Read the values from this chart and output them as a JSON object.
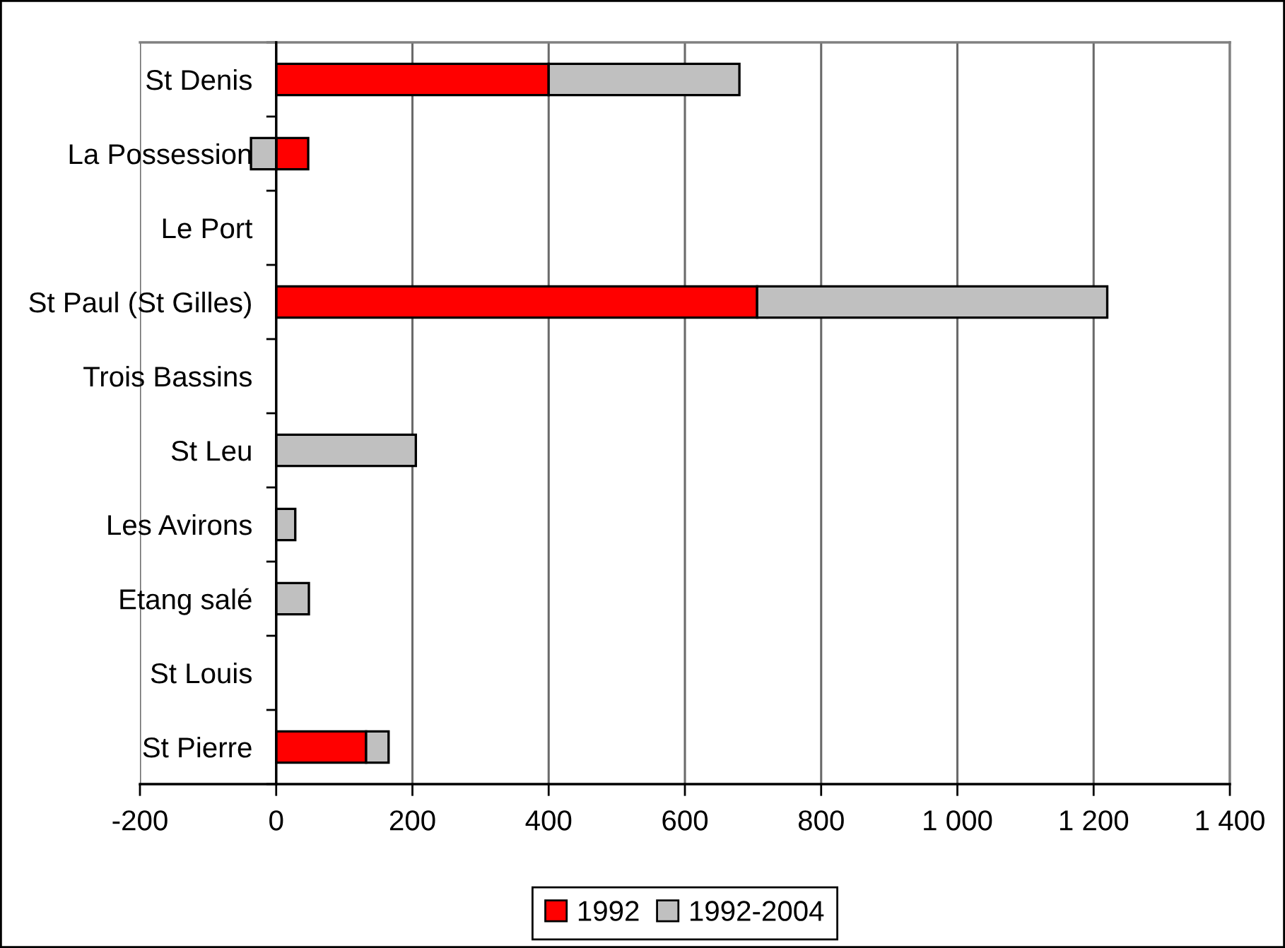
{
  "chart_data": {
    "type": "bar",
    "orientation": "horizontal",
    "stacked": true,
    "categories": [
      "St Denis",
      "La Possession",
      "Le Port",
      "St Paul (St Gilles)",
      "Trois Bassins",
      "St Leu",
      "Les Avirons",
      "Etang salé",
      "St Louis",
      "St Pierre"
    ],
    "series": [
      {
        "name": "1992",
        "color": "#ff0000",
        "values": [
          400,
          47,
          null,
          706,
          null,
          null,
          null,
          null,
          null,
          132
        ]
      },
      {
        "name": "1992-2004",
        "color": "#c0c0c0",
        "values": [
          280,
          -37,
          null,
          514,
          null,
          205,
          28,
          48,
          null,
          33
        ]
      }
    ],
    "xlim": [
      -200,
      1400
    ],
    "xticks": [
      -200,
      0,
      200,
      400,
      600,
      800,
      {
        "value": 1000,
        "label": "1 000"
      },
      {
        "value": 1200,
        "label": "1 200"
      },
      {
        "value": 1400,
        "label": "1 400"
      }
    ],
    "grid": "x",
    "legend": "bottom"
  }
}
